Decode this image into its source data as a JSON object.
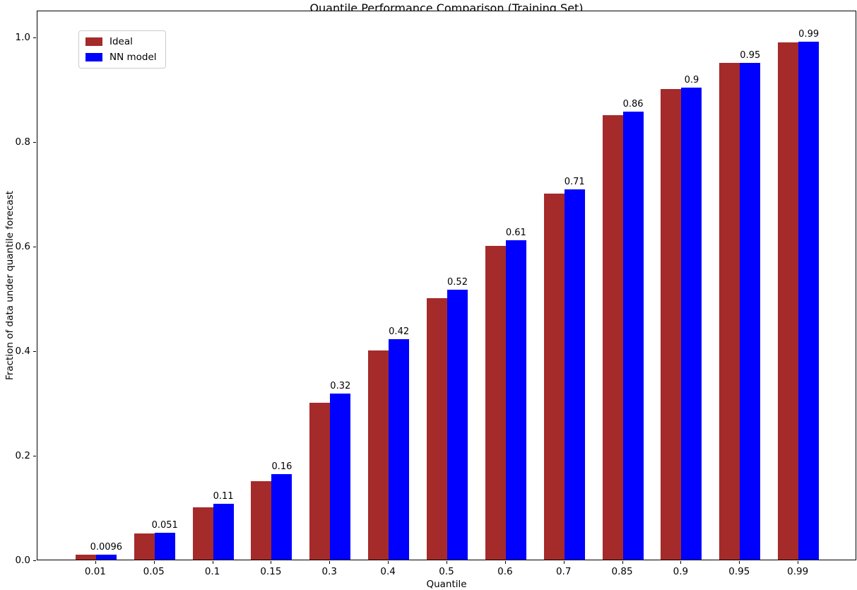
{
  "chart_data": {
    "type": "bar",
    "title": "Quantile Performance Comparison (Training Set)",
    "xlabel": "Quantile",
    "ylabel": "Fraction of data under quantile forecast",
    "categories": [
      "0.01",
      "0.05",
      "0.1",
      "0.15",
      "0.3",
      "0.4",
      "0.5",
      "0.6",
      "0.7",
      "0.85",
      "0.9",
      "0.95",
      "0.99"
    ],
    "series": [
      {
        "name": "Ideal",
        "color": "#a52a2a",
        "values": [
          0.01,
          0.05,
          0.1,
          0.15,
          0.3,
          0.4,
          0.5,
          0.6,
          0.7,
          0.85,
          0.9,
          0.95,
          0.99
        ]
      },
      {
        "name": "NN model",
        "color": "#0000ff",
        "values": [
          0.0096,
          0.051,
          0.107,
          0.163,
          0.318,
          0.422,
          0.517,
          0.611,
          0.709,
          0.857,
          0.903,
          0.951,
          0.991
        ],
        "bar_labels": [
          "0.0096",
          "0.051",
          "0.11",
          "0.16",
          "0.32",
          "0.42",
          "0.52",
          "0.61",
          "0.71",
          "0.86",
          "0.9",
          "0.95",
          "0.99"
        ]
      }
    ],
    "ytick_labels": [
      "0.0",
      "0.2",
      "0.4",
      "0.6",
      "0.8",
      "1.0"
    ],
    "yticks": [
      0.0,
      0.2,
      0.4,
      0.6,
      0.8,
      1.0
    ],
    "ylim": [
      0,
      1.052
    ],
    "legend_position": "upper left",
    "grid": false,
    "background_color": "#ffffff",
    "text_color": "#000000"
  }
}
